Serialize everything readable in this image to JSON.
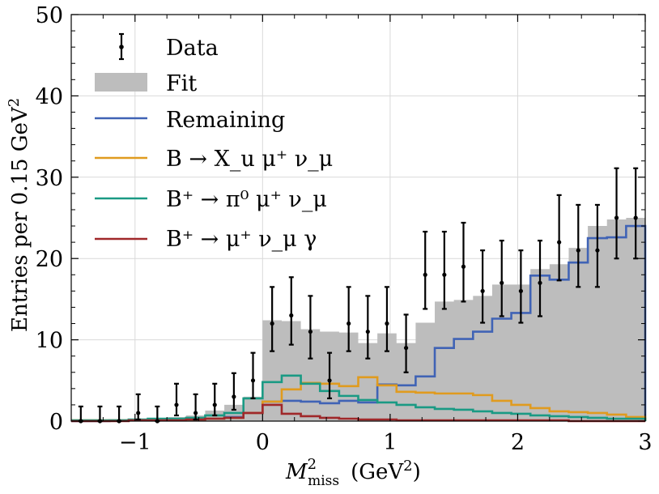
{
  "chart_data": {
    "type": "histogram",
    "xlabel_main": "M",
    "xlabel_sup": "2",
    "xlabel_sub": "miss",
    "xlabel_unit": "(GeV",
    "xlabel_unit_sup": "2",
    "xlabel_unit_close": ")",
    "ylabel": "Entries per 0.15 GeV",
    "ylabel_sup": "2",
    "xlim": [
      -1.5,
      3.0
    ],
    "ylim": [
      0,
      50
    ],
    "xticks": [
      -1,
      0,
      1,
      2,
      3
    ],
    "xtick_labels": [
      "−1",
      "0",
      "1",
      "2",
      "3"
    ],
    "yticks": [
      0,
      10,
      20,
      30,
      40,
      50
    ],
    "ytick_labels": [
      "0",
      "10",
      "20",
      "30",
      "40",
      "50"
    ],
    "grid": true,
    "legend_position": "upper-left",
    "bin_width": 0.15,
    "bin_edges": [
      -1.5,
      -1.35,
      -1.2,
      -1.05,
      -0.9,
      -0.75,
      -0.6,
      -0.45,
      -0.3,
      -0.15,
      0.0,
      0.15,
      0.3,
      0.45,
      0.6,
      0.75,
      0.9,
      1.05,
      1.2,
      1.35,
      1.5,
      1.65,
      1.8,
      1.95,
      2.1,
      2.25,
      2.4,
      2.55,
      2.7,
      2.85,
      3.0
    ],
    "legend": [
      {
        "key": "data",
        "label": "Data",
        "color": "#000000"
      },
      {
        "key": "fit",
        "label": "Fit",
        "color": "#bdbdbd"
      },
      {
        "key": "remaining",
        "label": "Remaining",
        "color": "#4063b5"
      },
      {
        "key": "xu",
        "label": "B → X_u μ⁺ ν_μ",
        "color": "#e09b1f"
      },
      {
        "key": "pi0",
        "label": "B⁺ → π⁰ μ⁺ ν_μ",
        "color": "#1a9a84"
      },
      {
        "key": "gamma",
        "label": "B⁺ → μ⁺ ν_μ γ",
        "color": "#a0282a"
      }
    ],
    "series": [
      {
        "name": "Fit",
        "key": "fit",
        "style": "filled-step",
        "color": "#bdbdbd",
        "values": [
          0.1,
          0.1,
          0.2,
          0.3,
          0.4,
          0.5,
          0.7,
          1.3,
          2.0,
          3.0,
          12.4,
          12.3,
          11.3,
          11.0,
          10.9,
          9.6,
          10.8,
          9.6,
          12.1,
          14.7,
          14.9,
          15.4,
          16.8,
          16.8,
          18.7,
          19.3,
          21.3,
          24.0,
          24.8,
          25.0
        ]
      },
      {
        "name": "Remaining",
        "key": "remaining",
        "style": "step",
        "color": "#4063b5",
        "values": [
          0.0,
          0.0,
          0.1,
          0.1,
          0.1,
          0.2,
          0.2,
          0.3,
          0.5,
          1.0,
          2.4,
          2.5,
          2.4,
          2.2,
          2.5,
          2.3,
          4.5,
          4.4,
          5.5,
          9.0,
          10.1,
          11.0,
          12.6,
          13.3,
          17.9,
          17.4,
          19.5,
          22.5,
          22.6,
          24.0
        ]
      },
      {
        "name": "B → X_u μ⁺ ν_μ",
        "key": "xu",
        "style": "step",
        "color": "#e09b1f",
        "values": [
          0.1,
          0.1,
          0.1,
          0.1,
          0.1,
          0.1,
          0.2,
          0.3,
          0.4,
          1.0,
          2.4,
          3.9,
          4.7,
          4.6,
          4.3,
          5.4,
          4.4,
          3.6,
          3.5,
          3.4,
          3.4,
          3.2,
          2.5,
          2.0,
          1.6,
          1.2,
          1.1,
          1.0,
          0.8,
          0.5
        ]
      },
      {
        "name": "B⁺ → π⁰ μ⁺ ν_μ",
        "key": "pi0",
        "style": "step",
        "color": "#1a9a84",
        "values": [
          0.1,
          0.1,
          0.1,
          0.2,
          0.3,
          0.3,
          0.4,
          0.7,
          1.0,
          2.8,
          4.8,
          5.6,
          4.6,
          3.7,
          3.1,
          2.6,
          2.3,
          2.0,
          1.7,
          1.5,
          1.4,
          1.2,
          1.0,
          0.9,
          0.7,
          0.6,
          0.5,
          0.4,
          0.3,
          0.3
        ]
      },
      {
        "name": "B⁺ → μ⁺ ν_μ γ",
        "key": "gamma",
        "style": "step",
        "color": "#a0282a",
        "values": [
          0.0,
          0.0,
          0.0,
          0.1,
          0.1,
          0.1,
          0.2,
          0.3,
          0.4,
          1.0,
          2.0,
          0.9,
          0.6,
          0.4,
          0.3,
          0.2,
          0.2,
          0.1,
          0.1,
          0.1,
          0.1,
          0.1,
          0.1,
          0.1,
          0.1,
          0.1,
          0.0,
          0.0,
          0.0,
          0.0
        ]
      }
    ],
    "data_points": {
      "name": "Data",
      "color": "#000000",
      "x": [
        -1.425,
        -1.275,
        -1.125,
        -0.975,
        -0.825,
        -0.675,
        -0.525,
        -0.375,
        -0.225,
        -0.075,
        0.075,
        0.225,
        0.375,
        0.525,
        0.675,
        0.825,
        0.975,
        1.125,
        1.275,
        1.425,
        1.575,
        1.725,
        1.875,
        2.025,
        2.175,
        2.325,
        2.475,
        2.625,
        2.775,
        2.925
      ],
      "y": [
        0,
        0,
        0,
        1,
        0,
        2,
        1,
        2,
        3,
        5,
        12,
        13,
        11,
        5,
        12,
        11,
        12,
        9,
        18,
        18,
        19,
        16,
        17,
        16,
        17,
        22,
        21,
        21,
        25,
        25
      ],
      "err_up": [
        1.8,
        1.8,
        1.8,
        2.3,
        1.8,
        2.6,
        2.3,
        2.6,
        2.9,
        3.4,
        4.5,
        4.7,
        4.4,
        3.4,
        4.5,
        4.4,
        4.5,
        4.1,
        5.3,
        5.3,
        5.4,
        5.0,
        5.2,
        5.0,
        5.2,
        5.8,
        5.6,
        5.6,
        6.1,
        6.1
      ],
      "err_down": [
        0.0,
        0.0,
        0.0,
        0.8,
        0.0,
        1.3,
        0.8,
        1.3,
        1.6,
        2.2,
        3.4,
        3.6,
        3.3,
        2.2,
        3.4,
        3.3,
        3.4,
        3.0,
        4.2,
        4.2,
        4.3,
        3.9,
        4.1,
        3.9,
        4.1,
        4.7,
        4.5,
        4.5,
        5.0,
        5.0
      ]
    }
  }
}
